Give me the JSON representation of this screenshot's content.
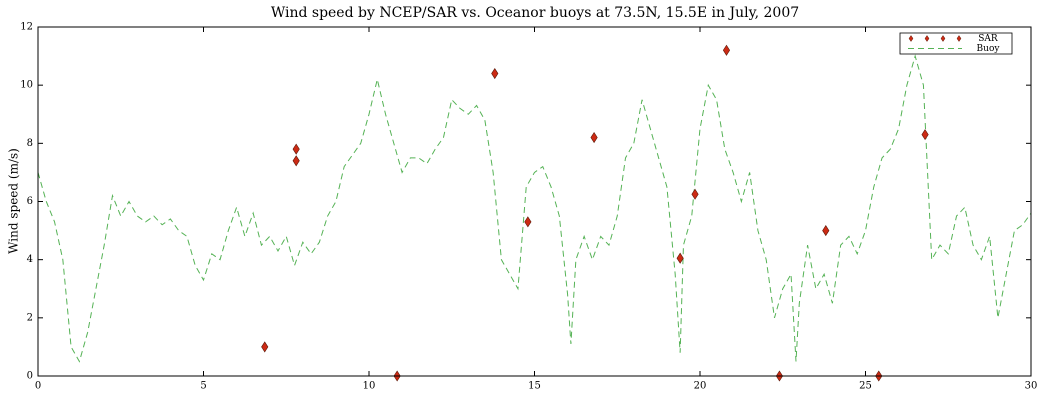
{
  "chart_data": {
    "type": "line",
    "title": "Wind speed by NCEP/SAR vs. Oceanor buoys at 73.5N, 15.5E in July, 2007",
    "y_label": "Wind speed (m/s)",
    "xlim": [
      0,
      30
    ],
    "xticks": [
      0,
      5,
      10,
      15,
      20,
      25,
      30
    ],
    "ylim": [
      0,
      12
    ],
    "yticks": [
      0,
      2,
      4,
      6,
      8,
      10,
      12
    ],
    "legend": "upper right",
    "series": [
      {
        "name": "SAR",
        "type": "scatter",
        "color": "#cc2a14",
        "x": [
          6.85,
          7.8,
          7.8,
          10.85,
          13.8,
          14.8,
          16.8,
          19.4,
          19.85,
          20.8,
          22.4,
          23.8,
          25.4,
          26.8
        ],
        "values": [
          1.0,
          7.8,
          7.4,
          0,
          10.4,
          5.3,
          8.2,
          4.05,
          6.25,
          11.2,
          0,
          5.0,
          0,
          8.3
        ]
      },
      {
        "name": "Buoy",
        "type": "line",
        "color": "#55b255",
        "x": [
          0,
          0.25,
          0.5,
          0.75,
          1.0,
          1.25,
          1.5,
          1.75,
          2.0,
          2.25,
          2.5,
          2.75,
          3.0,
          3.25,
          3.5,
          3.75,
          4.0,
          4.25,
          4.5,
          4.75,
          5.0,
          5.25,
          5.5,
          5.75,
          6.0,
          6.25,
          6.5,
          6.75,
          7.0,
          7.25,
          7.5,
          7.75,
          8.0,
          8.25,
          8.5,
          8.75,
          9.0,
          9.25,
          9.5,
          9.75,
          10.0,
          10.25,
          10.5,
          10.75,
          11.0,
          11.25,
          11.5,
          11.75,
          12.0,
          12.25,
          12.5,
          12.75,
          13.0,
          13.25,
          13.5,
          13.75,
          14.0,
          14.25,
          14.5,
          14.75,
          15.0,
          15.25,
          15.5,
          15.75,
          16.0,
          16.1,
          16.25,
          16.5,
          16.75,
          17.0,
          17.25,
          17.5,
          17.75,
          18.0,
          18.25,
          18.5,
          18.75,
          19.0,
          19.25,
          19.4,
          19.5,
          19.75,
          20.0,
          20.25,
          20.5,
          20.75,
          21.0,
          21.25,
          21.5,
          21.75,
          22.0,
          22.25,
          22.5,
          22.75,
          22.9,
          23.0,
          23.25,
          23.5,
          23.75,
          24.0,
          24.25,
          24.5,
          24.75,
          25.0,
          25.25,
          25.5,
          25.75,
          26.0,
          26.25,
          26.5,
          26.75,
          27.0,
          27.25,
          27.5,
          27.75,
          28.0,
          28.25,
          28.5,
          28.75,
          29.0,
          29.25,
          29.5,
          29.75,
          30.0
        ],
        "values": [
          7.0,
          6.0,
          5.3,
          4.0,
          1.0,
          0.5,
          1.5,
          3.0,
          4.5,
          6.2,
          5.5,
          6.0,
          5.5,
          5.3,
          5.5,
          5.2,
          5.4,
          5.0,
          4.8,
          3.8,
          3.3,
          4.2,
          4.0,
          5.0,
          5.8,
          4.8,
          5.6,
          4.5,
          4.8,
          4.3,
          4.8,
          3.8,
          4.6,
          4.2,
          4.6,
          5.5,
          6.0,
          7.2,
          7.6,
          8.0,
          9.0,
          10.2,
          9.0,
          8.0,
          7.0,
          7.5,
          7.5,
          7.3,
          7.8,
          8.2,
          9.5,
          9.2,
          9.0,
          9.3,
          8.8,
          7.0,
          4.0,
          3.5,
          3.0,
          6.5,
          7.0,
          7.2,
          6.5,
          5.5,
          2.8,
          1.1,
          4.0,
          4.8,
          4.0,
          4.8,
          4.5,
          5.5,
          7.5,
          8.0,
          9.5,
          8.5,
          7.5,
          6.5,
          3.5,
          0.8,
          4.5,
          5.5,
          8.5,
          10.0,
          9.5,
          7.8,
          7.0,
          6.0,
          7.0,
          5.0,
          4.0,
          2.0,
          3.0,
          3.5,
          0.5,
          2.5,
          4.5,
          3.0,
          3.5,
          2.5,
          4.5,
          4.8,
          4.2,
          5.0,
          6.5,
          7.5,
          7.8,
          8.5,
          10.0,
          11.0,
          10.0,
          4.0,
          4.5,
          4.2,
          5.5,
          5.8,
          4.5,
          4.0,
          4.8,
          2.0,
          3.5,
          5.0,
          5.2,
          5.6
        ]
      }
    ]
  }
}
